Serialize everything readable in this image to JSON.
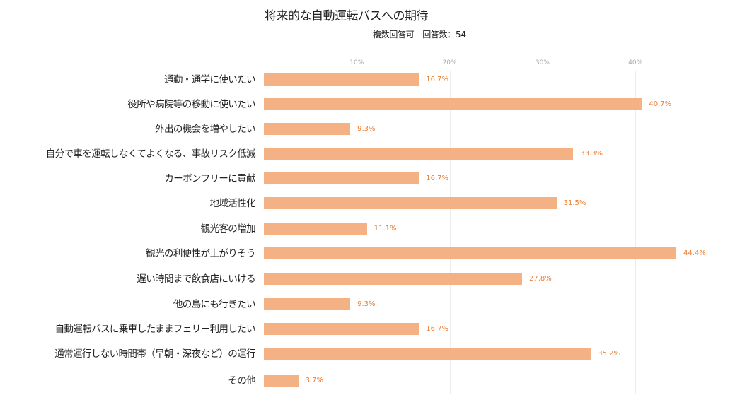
{
  "chart": {
    "title": "将来的な自動運転バスへの期待",
    "subtitle": "複数回答可　回答数：54"
  },
  "chart_data": {
    "type": "bar",
    "orientation": "horizontal",
    "title": "将来的な自動運転バスへの期待",
    "subtitle": "複数回答可　回答数：54",
    "xlabel": "",
    "ylabel": "",
    "xlim": [
      0,
      45
    ],
    "x_ticks": [
      "10%",
      "20%",
      "30%",
      "40%"
    ],
    "grid": true,
    "legend": null,
    "bar_color": "#f4b183",
    "label_color": "#ed7d31",
    "categories": [
      "通勤・通学に使いたい",
      "役所や病院等の移動に使いたい",
      "外出の機会を増やしたい",
      "自分で車を運転しなくてよくなる、事故リスク低減",
      "カーボンフリーに貢献",
      "地域活性化",
      "観光客の増加",
      "観光の利便性が上がりそう",
      "遅い時間まで飲食店にいける",
      "他の島にも行きたい",
      "自動運転バスに乗車したままフェリー利用したい",
      "通常運行しない時間帯（早朝・深夜など）の運行",
      "その他"
    ],
    "values": [
      16.7,
      40.7,
      9.3,
      33.3,
      16.7,
      31.5,
      11.1,
      44.4,
      27.8,
      9.3,
      16.7,
      35.2,
      3.7
    ],
    "value_labels": [
      "16.7%",
      "40.7%",
      "9.3%",
      "33.3%",
      "16.7%",
      "31.5%",
      "11.1%",
      "44.4%",
      "27.8%",
      "9.3%",
      "16.7%",
      "35.2%",
      "3.7%"
    ]
  }
}
